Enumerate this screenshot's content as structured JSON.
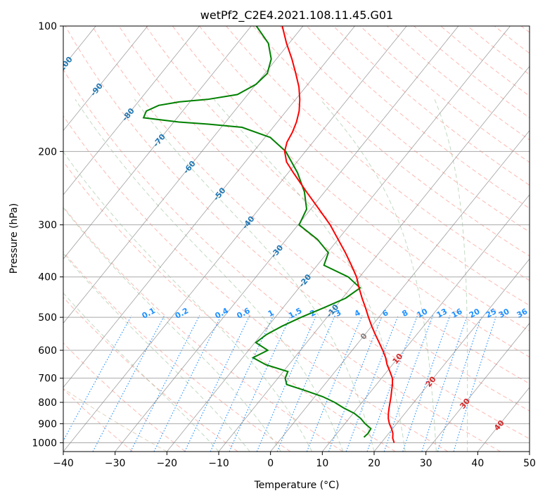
{
  "chart_data": {
    "type": "skew-t",
    "title": "wetPf2_C2E4.2021.108.11.45.G01",
    "xlabel": "Temperature (°C)",
    "ylabel": "Pressure (hPa)",
    "xlim": [
      -40,
      50
    ],
    "ylim_hpa": [
      1050,
      100
    ],
    "y_scale": "log",
    "grid": true,
    "x_ticks": [
      "−40",
      "−30",
      "−20",
      "−10",
      "0",
      "10",
      "20",
      "30",
      "40",
      "50"
    ],
    "x_tick_values": [
      -40,
      -30,
      -20,
      -10,
      0,
      10,
      20,
      30,
      40,
      50
    ],
    "y_ticks": [
      "100",
      "200",
      "300",
      "400",
      "500",
      "600",
      "700",
      "800",
      "900",
      "1000"
    ],
    "y_tick_values": [
      100,
      200,
      300,
      400,
      500,
      600,
      700,
      800,
      900,
      1000
    ],
    "temperature_profile": {
      "color": "#ff0000",
      "points": [
        {
          "p": 1000,
          "t": 22.5
        },
        {
          "p": 975,
          "t": 21.5
        },
        {
          "p": 950,
          "t": 20.8
        },
        {
          "p": 925,
          "t": 19.8
        },
        {
          "p": 900,
          "t": 18.6
        },
        {
          "p": 875,
          "t": 17.6
        },
        {
          "p": 850,
          "t": 16.8
        },
        {
          "p": 825,
          "t": 16.1
        },
        {
          "p": 800,
          "t": 15.4
        },
        {
          "p": 775,
          "t": 14.7
        },
        {
          "p": 750,
          "t": 13.9
        },
        {
          "p": 725,
          "t": 13.1
        },
        {
          "p": 700,
          "t": 12.1
        },
        {
          "p": 675,
          "t": 10.6
        },
        {
          "p": 650,
          "t": 9.0
        },
        {
          "p": 625,
          "t": 7.6
        },
        {
          "p": 600,
          "t": 5.9
        },
        {
          "p": 575,
          "t": 4.0
        },
        {
          "p": 550,
          "t": 2.0
        },
        {
          "p": 525,
          "t": 0.0
        },
        {
          "p": 500,
          "t": -2.0
        },
        {
          "p": 475,
          "t": -4.0
        },
        {
          "p": 450,
          "t": -6.2
        },
        {
          "p": 425,
          "t": -8.4
        },
        {
          "p": 400,
          "t": -10.6
        },
        {
          "p": 375,
          "t": -13.4
        },
        {
          "p": 350,
          "t": -16.5
        },
        {
          "p": 325,
          "t": -20.0
        },
        {
          "p": 300,
          "t": -23.8
        },
        {
          "p": 275,
          "t": -28.4
        },
        {
          "p": 250,
          "t": -33.5
        },
        {
          "p": 225,
          "t": -39.0
        },
        {
          "p": 212,
          "t": -42.0
        },
        {
          "p": 200,
          "t": -44.0
        },
        {
          "p": 190,
          "t": -45.0
        },
        {
          "p": 180,
          "t": -45.5
        },
        {
          "p": 170,
          "t": -46.3
        },
        {
          "p": 160,
          "t": -47.5
        },
        {
          "p": 150,
          "t": -49.2
        },
        {
          "p": 140,
          "t": -51.3
        },
        {
          "p": 130,
          "t": -54.0
        },
        {
          "p": 120,
          "t": -57.0
        },
        {
          "p": 110,
          "t": -60.5
        },
        {
          "p": 100,
          "t": -64.0
        }
      ]
    },
    "dewpoint_profile": {
      "color": "#008000",
      "points": [
        {
          "p": 970,
          "t": 15.8
        },
        {
          "p": 950,
          "t": 16.0
        },
        {
          "p": 925,
          "t": 15.8
        },
        {
          "p": 900,
          "t": 13.9
        },
        {
          "p": 875,
          "t": 12.3
        },
        {
          "p": 850,
          "t": 10.2
        },
        {
          "p": 825,
          "t": 7.3
        },
        {
          "p": 800,
          "t": 4.7
        },
        {
          "p": 775,
          "t": 1.5
        },
        {
          "p": 750,
          "t": -2.7
        },
        {
          "p": 725,
          "t": -7.3
        },
        {
          "p": 700,
          "t": -8.6
        },
        {
          "p": 675,
          "t": -9.1
        },
        {
          "p": 650,
          "t": -14.4
        },
        {
          "p": 625,
          "t": -18.0
        },
        {
          "p": 600,
          "t": -16.3
        },
        {
          "p": 575,
          "t": -19.8
        },
        {
          "p": 550,
          "t": -19.0
        },
        {
          "p": 525,
          "t": -17.3
        },
        {
          "p": 500,
          "t": -15.0
        },
        {
          "p": 475,
          "t": -12.2
        },
        {
          "p": 450,
          "t": -9.4
        },
        {
          "p": 425,
          "t": -8.2
        },
        {
          "p": 400,
          "t": -12.2
        },
        {
          "p": 375,
          "t": -18.7
        },
        {
          "p": 350,
          "t": -19.8
        },
        {
          "p": 325,
          "t": -24.0
        },
        {
          "p": 300,
          "t": -29.8
        },
        {
          "p": 275,
          "t": -30.8
        },
        {
          "p": 250,
          "t": -33.9
        },
        {
          "p": 225,
          "t": -38.2
        },
        {
          "p": 200,
          "t": -43.8
        },
        {
          "p": 185,
          "t": -49.0
        },
        {
          "p": 175,
          "t": -56.0
        },
        {
          "p": 172,
          "t": -63.0
        },
        {
          "p": 170,
          "t": -69.0
        },
        {
          "p": 166,
          "t": -76.5
        },
        {
          "p": 160,
          "t": -77.0
        },
        {
          "p": 155,
          "t": -75.5
        },
        {
          "p": 152,
          "t": -72.0
        },
        {
          "p": 150,
          "t": -67.0
        },
        {
          "p": 146,
          "t": -62.0
        },
        {
          "p": 138,
          "t": -60.0
        },
        {
          "p": 130,
          "t": -59.5
        },
        {
          "p": 120,
          "t": -61.0
        },
        {
          "p": 110,
          "t": -64.0
        },
        {
          "p": 100,
          "t": -69.0
        }
      ]
    },
    "skewed_isotherm_labels": [
      {
        "text": "-100",
        "t": -100,
        "p": 124,
        "color": "#1f77b4"
      },
      {
        "text": "-90",
        "t": -90,
        "p": 142,
        "color": "#1f77b4"
      },
      {
        "text": "-80",
        "t": -80,
        "p": 163,
        "color": "#1f77b4"
      },
      {
        "text": "-70",
        "t": -70,
        "p": 188,
        "color": "#1f77b4"
      },
      {
        "text": "-60",
        "t": -60,
        "p": 218,
        "color": "#1f77b4"
      },
      {
        "text": "-50",
        "t": -50,
        "p": 253,
        "color": "#1f77b4"
      },
      {
        "text": "-40",
        "t": -40,
        "p": 296,
        "color": "#1f77b4"
      },
      {
        "text": "-30",
        "t": -30,
        "p": 347,
        "color": "#1f77b4"
      },
      {
        "text": "-20",
        "t": -20,
        "p": 408,
        "color": "#1f77b4"
      },
      {
        "text": "-10",
        "t": -10,
        "p": 482,
        "color": "#1f77b4"
      },
      {
        "text": "0",
        "t": 0,
        "p": 555,
        "color": "#808080"
      },
      {
        "text": "10",
        "t": 10,
        "p": 628,
        "color": "#d62728"
      },
      {
        "text": "20",
        "t": 20,
        "p": 713,
        "color": "#d62728"
      },
      {
        "text": "30",
        "t": 30,
        "p": 805,
        "color": "#d62728"
      },
      {
        "text": "40",
        "t": 40,
        "p": 908,
        "color": "#d62728"
      }
    ],
    "mixing_ratio_labels": [
      {
        "text": "0.1",
        "x": -23.3,
        "p": 495
      },
      {
        "text": "0.2",
        "x": -16.9,
        "p": 495
      },
      {
        "text": "0.4",
        "x": -9.2,
        "p": 495
      },
      {
        "text": "0.6",
        "x": -5.0,
        "p": 495
      },
      {
        "text": "1",
        "x": 0.3,
        "p": 495
      },
      {
        "text": "1.5",
        "x": 5.0,
        "p": 495
      },
      {
        "text": "2",
        "x": 8.4,
        "p": 495
      },
      {
        "text": "3",
        "x": 13.3,
        "p": 495
      },
      {
        "text": "4",
        "x": 17.0,
        "p": 495
      },
      {
        "text": "6",
        "x": 22.4,
        "p": 495
      },
      {
        "text": "8",
        "x": 26.2,
        "p": 495
      },
      {
        "text": "10",
        "x": 29.5,
        "p": 495
      },
      {
        "text": "13",
        "x": 33.3,
        "p": 495
      },
      {
        "text": "16",
        "x": 36.2,
        "p": 495
      },
      {
        "text": "20",
        "x": 39.6,
        "p": 495
      },
      {
        "text": "25",
        "x": 42.8,
        "p": 495
      },
      {
        "text": "30",
        "x": 45.3,
        "p": 495
      },
      {
        "text": "36",
        "x": 48.8,
        "p": 495
      }
    ],
    "line_colors": {
      "isotherm": "#808080",
      "isobar": "#a9a9a9",
      "dry_adiabat": "#fa8072",
      "moist_adiabat": "#8fbc8f",
      "mixing_ratio": "#1e90ff",
      "stratospheric": "#d2b48c",
      "mixing_label": "#1e90ff"
    }
  }
}
